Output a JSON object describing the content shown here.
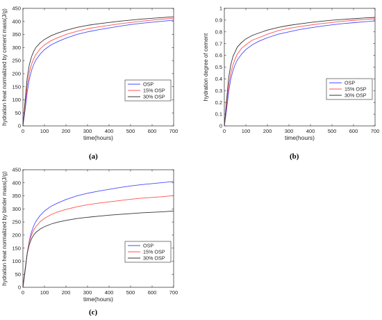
{
  "chart_data": [
    {
      "type": "line",
      "panel_label": "(a)",
      "xlabel": "time(hours)",
      "ylabel": "hydration heat normalized by cement mass(J/g)",
      "xlim": [
        0,
        700
      ],
      "ylim": [
        0,
        450
      ],
      "xticks": [
        0,
        100,
        200,
        300,
        400,
        500,
        600,
        700
      ],
      "yticks": [
        0,
        50,
        100,
        150,
        200,
        250,
        300,
        350,
        400,
        450
      ],
      "grid": false,
      "legend_position": "lower-right",
      "series": [
        {
          "name": "OSP",
          "color": "#4a4aff",
          "x": [
            0,
            10,
            20,
            30,
            40,
            50,
            60,
            80,
            100,
            130,
            160,
            200,
            250,
            300,
            350,
            400,
            450,
            500,
            550,
            600,
            650,
            700
          ],
          "y": [
            0,
            60,
            130,
            180,
            212,
            235,
            252,
            275,
            292,
            310,
            322,
            336,
            350,
            360,
            368,
            375,
            382,
            388,
            393,
            397,
            401,
            405
          ]
        },
        {
          "name": "15% OSP",
          "color": "#ff5050",
          "x": [
            0,
            10,
            20,
            30,
            40,
            50,
            60,
            80,
            100,
            130,
            160,
            200,
            250,
            300,
            350,
            400,
            450,
            500,
            550,
            600,
            650,
            700
          ],
          "y": [
            0,
            75,
            155,
            205,
            236,
            257,
            273,
            295,
            310,
            326,
            337,
            350,
            362,
            372,
            379,
            385,
            391,
            396,
            401,
            405,
            409,
            412
          ]
        },
        {
          "name": "30% OSP",
          "color": "#333333",
          "x": [
            0,
            10,
            20,
            30,
            40,
            50,
            60,
            80,
            100,
            130,
            160,
            200,
            250,
            300,
            350,
            400,
            450,
            500,
            550,
            600,
            650,
            700
          ],
          "y": [
            0,
            95,
            185,
            235,
            265,
            285,
            300,
            318,
            331,
            345,
            355,
            366,
            377,
            385,
            391,
            396,
            401,
            405,
            409,
            412,
            415,
            418
          ]
        }
      ]
    },
    {
      "type": "line",
      "panel_label": "(b)",
      "xlabel": "time(hours)",
      "ylabel": "hydration degree of cement",
      "xlim": [
        0,
        700
      ],
      "ylim": [
        0,
        1
      ],
      "xticks": [
        0,
        100,
        200,
        300,
        400,
        500,
        600,
        700
      ],
      "yticks": [
        0,
        0.1,
        0.2,
        0.3,
        0.4,
        0.5,
        0.6,
        0.7,
        0.8,
        0.9,
        1
      ],
      "grid": false,
      "legend_position": "lower-right",
      "series": [
        {
          "name": "OSP",
          "color": "#4a4aff",
          "x": [
            0,
            10,
            20,
            30,
            40,
            50,
            60,
            80,
            100,
            130,
            160,
            200,
            250,
            300,
            350,
            400,
            450,
            500,
            550,
            600,
            650,
            700
          ],
          "y": [
            0,
            0.13,
            0.29,
            0.4,
            0.47,
            0.52,
            0.56,
            0.61,
            0.65,
            0.69,
            0.72,
            0.75,
            0.78,
            0.8,
            0.82,
            0.835,
            0.848,
            0.86,
            0.87,
            0.878,
            0.886,
            0.893
          ]
        },
        {
          "name": "15% OSP",
          "color": "#ff5050",
          "x": [
            0,
            10,
            20,
            30,
            40,
            50,
            60,
            80,
            100,
            130,
            160,
            200,
            250,
            300,
            350,
            400,
            450,
            500,
            550,
            600,
            650,
            700
          ],
          "y": [
            0,
            0.17,
            0.34,
            0.45,
            0.52,
            0.57,
            0.61,
            0.66,
            0.69,
            0.73,
            0.75,
            0.78,
            0.81,
            0.83,
            0.845,
            0.858,
            0.87,
            0.88,
            0.89,
            0.898,
            0.905,
            0.912
          ]
        },
        {
          "name": "30% OSP",
          "color": "#333333",
          "x": [
            0,
            10,
            20,
            30,
            40,
            50,
            60,
            80,
            100,
            130,
            160,
            200,
            250,
            300,
            350,
            400,
            450,
            500,
            550,
            600,
            650,
            700
          ],
          "y": [
            0,
            0.21,
            0.41,
            0.52,
            0.59,
            0.63,
            0.67,
            0.71,
            0.74,
            0.77,
            0.79,
            0.815,
            0.838,
            0.855,
            0.868,
            0.88,
            0.89,
            0.899,
            0.906,
            0.912,
            0.918,
            0.923
          ]
        }
      ]
    },
    {
      "type": "line",
      "panel_label": "(c)",
      "xlabel": "time(hours)",
      "ylabel": "hydration heat normalized by binder mass(J/g)",
      "xlim": [
        0,
        700
      ],
      "ylim": [
        0,
        450
      ],
      "xticks": [
        0,
        100,
        200,
        300,
        400,
        500,
        600,
        700
      ],
      "yticks": [
        0,
        50,
        100,
        150,
        200,
        250,
        300,
        350,
        400,
        450
      ],
      "grid": false,
      "legend_position": "lower-right",
      "series": [
        {
          "name": "OSP",
          "color": "#4a4aff",
          "x": [
            0,
            10,
            20,
            30,
            40,
            50,
            60,
            80,
            100,
            130,
            160,
            200,
            250,
            300,
            350,
            400,
            450,
            500,
            550,
            600,
            650,
            700
          ],
          "y": [
            0,
            60,
            130,
            180,
            212,
            235,
            252,
            275,
            292,
            310,
            322,
            336,
            350,
            360,
            368,
            375,
            382,
            388,
            393,
            397,
            401,
            405
          ]
        },
        {
          "name": "15% OSP",
          "color": "#ff5050",
          "x": [
            0,
            10,
            20,
            30,
            40,
            50,
            60,
            80,
            100,
            130,
            160,
            200,
            250,
            300,
            350,
            400,
            450,
            500,
            550,
            600,
            650,
            700
          ],
          "y": [
            0,
            65,
            132,
            175,
            201,
            219,
            232,
            251,
            264,
            278,
            288,
            298,
            308,
            316,
            322,
            327,
            332,
            337,
            341,
            344,
            347,
            351
          ]
        },
        {
          "name": "30% OSP",
          "color": "#333333",
          "x": [
            0,
            10,
            20,
            30,
            40,
            50,
            60,
            80,
            100,
            130,
            160,
            200,
            250,
            300,
            350,
            400,
            450,
            500,
            550,
            600,
            650,
            700
          ],
          "y": [
            0,
            67,
            130,
            165,
            186,
            200,
            210,
            223,
            232,
            242,
            249,
            256,
            263,
            268,
            272,
            276,
            279,
            282,
            285,
            287,
            289,
            292
          ]
        }
      ]
    }
  ]
}
